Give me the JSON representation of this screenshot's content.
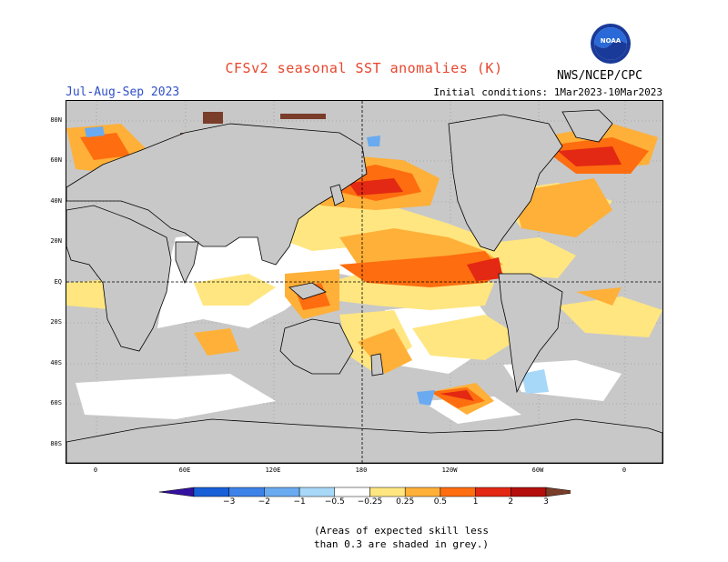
{
  "header": {
    "title": "CFSv2 seasonal SST anomalies (K)",
    "season": "Jul-Aug-Sep 2023",
    "initial_conditions": "Initial conditions: 1Mar2023-10Mar2023",
    "organization": "NWS/NCEP/CPC",
    "logo_text": "NOAA"
  },
  "map": {
    "lat_labels": [
      "80N",
      "60N",
      "40N",
      "20N",
      "EQ",
      "20S",
      "40S",
      "60S",
      "80S"
    ],
    "lon_labels": [
      "0",
      "60E",
      "120E",
      "180",
      "120W",
      "60W",
      "0"
    ],
    "reference_lines": [
      "equator",
      "dateline"
    ],
    "grey_meaning": "skill < 0.3"
  },
  "colorbar": {
    "labels": [
      "−3",
      "−2",
      "−1",
      "−0.5",
      "−0.25",
      "0.25",
      "0.5",
      "1",
      "2",
      "3"
    ],
    "colors": [
      "#3410a0",
      "#1860d8",
      "#3c82e8",
      "#6aaaf0",
      "#a8d8f8",
      "#ffffff",
      "#ffe680",
      "#ffb038",
      "#fe6d0f",
      "#e32813",
      "#b40f0c",
      "#7a3d2a"
    ]
  },
  "footnote": {
    "line1": "(Areas of expected skill less",
    "line2": "than 0.3 are shaded in grey.)"
  }
}
